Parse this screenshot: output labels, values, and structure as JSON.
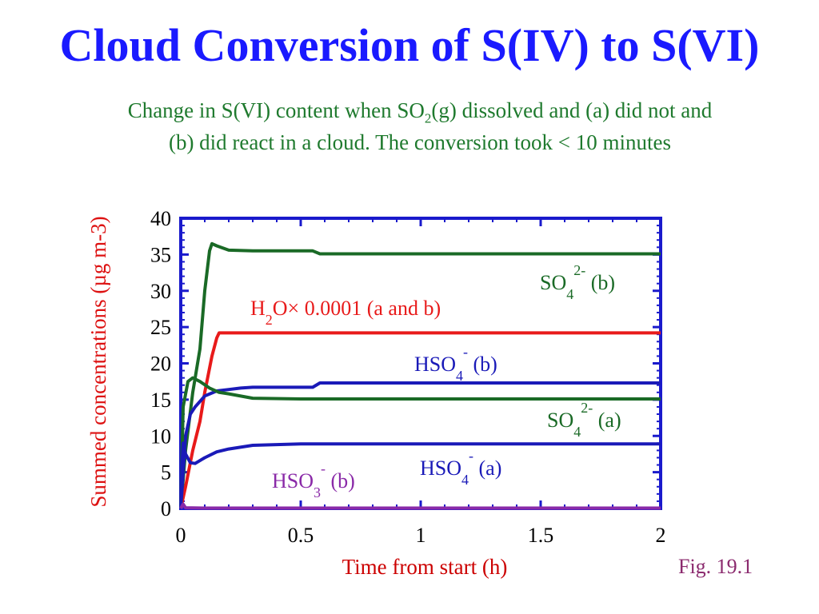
{
  "slide": {
    "title": "Cloud Conversion of S(IV) to S(VI)",
    "subtitle_part1": "Change in S(VI) content when SO",
    "subtitle_sub": "2",
    "subtitle_part2": "(g) dissolved and (a) did not and",
    "subtitle_line2": "(b) did react in a cloud. The conversion took < 10 minutes",
    "figure_label": "Fig. 19.1"
  },
  "colors": {
    "title": "#1a1aff",
    "subtitle": "#1f7a2e",
    "axis": "#1a1acc",
    "ylabel": "#d11",
    "xlabel": "#c00",
    "fig": "#8b2a6e"
  },
  "chart_data": {
    "type": "line",
    "xlabel": "Time from start (h)",
    "ylabel": "Summed concentrations (µg m-3)",
    "xlim": [
      0,
      2
    ],
    "ylim": [
      0,
      40
    ],
    "xticks": [
      0,
      0.5,
      1,
      1.5,
      2
    ],
    "xtick_labels": [
      "0",
      "0.5",
      "1",
      "1.5",
      "2"
    ],
    "yticks": [
      0,
      5,
      10,
      15,
      20,
      25,
      30,
      35,
      40
    ],
    "ytick_labels": [
      "0",
      "5",
      "10",
      "15",
      "20",
      "25",
      "30",
      "35",
      "40"
    ],
    "grid": false,
    "series": [
      {
        "id": "so4_b",
        "name": "SO4 2- (b)",
        "color": "#1a6a26",
        "label_parts": [
          "SO",
          "4",
          "2-",
          " (b)"
        ],
        "x": [
          0,
          0.02,
          0.05,
          0.08,
          0.1,
          0.12,
          0.13,
          0.15,
          0.2,
          0.3,
          0.55,
          0.58,
          1.0,
          1.5,
          2.0
        ],
        "y": [
          0,
          8,
          16,
          22,
          30,
          35.5,
          36.5,
          36.2,
          35.6,
          35.5,
          35.5,
          35.1,
          35.1,
          35.1,
          35.1
        ]
      },
      {
        "id": "h2o",
        "name": "H2O× 0.0001 (a and b)",
        "color": "#e81a1a",
        "label_parts": [
          "H",
          "2",
          "O× 0.0001 (a and b)"
        ],
        "x": [
          0,
          0.02,
          0.05,
          0.08,
          0.1,
          0.13,
          0.15,
          0.16,
          0.3,
          1.0,
          1.5,
          2.0
        ],
        "y": [
          0,
          3,
          8,
          12,
          16,
          21,
          23.5,
          24.2,
          24.2,
          24.2,
          24.2,
          24.2
        ]
      },
      {
        "id": "hso4_b",
        "name": "HSO4 - (b)",
        "color": "#1a1ab8",
        "label_parts": [
          "HSO",
          "4",
          "-",
          " (b)"
        ],
        "x": [
          0,
          0.01,
          0.02,
          0.04,
          0.06,
          0.1,
          0.15,
          0.2,
          0.25,
          0.3,
          0.55,
          0.58,
          1.0,
          1.5,
          2.0
        ],
        "y": [
          0,
          5,
          10,
          13,
          14,
          15.5,
          16.2,
          16.4,
          16.6,
          16.7,
          16.7,
          17.3,
          17.3,
          17.3,
          17.3
        ]
      },
      {
        "id": "so4_a",
        "name": "SO4 2- (a)",
        "color": "#1a6a26",
        "label_parts": [
          "SO",
          "4",
          "2-",
          " (a)"
        ],
        "x": [
          0,
          0.01,
          0.03,
          0.05,
          0.08,
          0.12,
          0.16,
          0.2,
          0.3,
          0.5,
          1.0,
          1.5,
          2.0
        ],
        "y": [
          0,
          14,
          17.5,
          18,
          17.5,
          16.6,
          16,
          15.8,
          15.2,
          15.1,
          15.1,
          15.1,
          15.1
        ]
      },
      {
        "id": "hso4_a",
        "name": "HSO4 - (a)",
        "color": "#1a1ab8",
        "label_parts": [
          "HSO",
          "4",
          "-",
          " (a)"
        ],
        "x": [
          0,
          0.005,
          0.01,
          0.02,
          0.04,
          0.06,
          0.1,
          0.15,
          0.2,
          0.3,
          0.5,
          1.0,
          1.5,
          2.0
        ],
        "y": [
          0,
          6,
          9,
          7.5,
          6.3,
          6.2,
          7,
          7.8,
          8.2,
          8.7,
          8.9,
          8.9,
          8.9,
          8.9
        ]
      },
      {
        "id": "hso3_b",
        "name": "HSO3 - (b)",
        "color": "#8a2aa8",
        "label_parts": [
          "HSO",
          "3",
          "-",
          " (b)"
        ],
        "x": [
          0,
          0.01,
          0.02,
          0.1,
          1.0,
          2.0
        ],
        "y": [
          0,
          0.6,
          0.1,
          0.05,
          0.05,
          0.05
        ]
      }
    ]
  }
}
